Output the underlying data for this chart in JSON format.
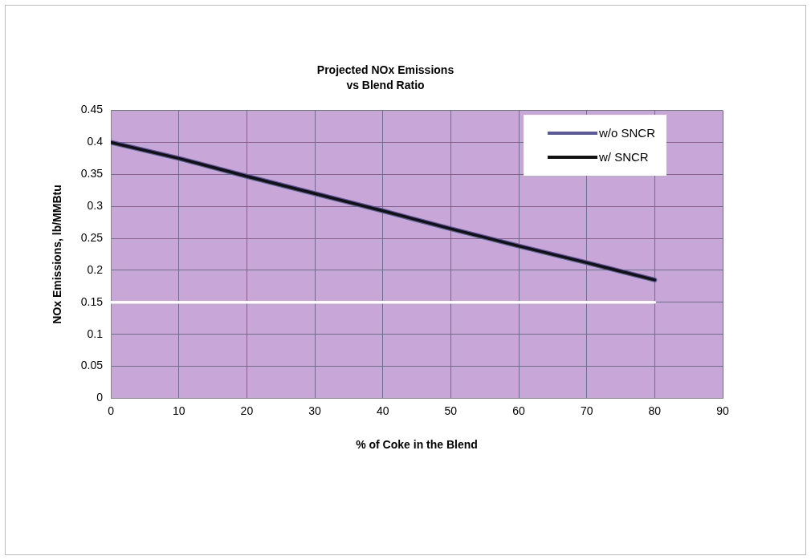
{
  "chart_data": {
    "type": "line",
    "title": "Projected NOx Emissions",
    "subtitle": "vs Blend Ratio",
    "xlabel": "% of Coke in the Blend",
    "ylabel": "NOx Emissions, lb/MMBtu",
    "x": [
      0,
      10,
      20,
      30,
      40,
      50,
      60,
      70,
      80
    ],
    "series": [
      {
        "name": "w/o SNCR",
        "color": "#5a5a9a",
        "values": [
          0.4,
          0.375,
          0.347,
          0.32,
          0.293,
          0.265,
          0.238,
          0.212,
          0.185
        ]
      },
      {
        "name": "w/ SNCR",
        "color": "#111111",
        "values": [
          0.4,
          0.375,
          0.347,
          0.32,
          0.293,
          0.265,
          0.238,
          0.212,
          0.185
        ]
      },
      {
        "color": "#ffffff",
        "values": [
          0.15,
          0.15,
          0.15,
          0.15,
          0.15,
          0.15,
          0.15,
          0.15,
          0.15
        ]
      }
    ],
    "xlim": [
      0,
      90
    ],
    "xticks": [
      0,
      10,
      20,
      30,
      40,
      50,
      60,
      70,
      80,
      90
    ],
    "ylim": [
      0,
      0.45
    ],
    "yticks": [
      0,
      0.05,
      0.1,
      0.15,
      0.2,
      0.25,
      0.3,
      0.35,
      0.4,
      0.45
    ],
    "grid": true,
    "legend": "top right",
    "marker": "none",
    "line_style": "solid"
  }
}
